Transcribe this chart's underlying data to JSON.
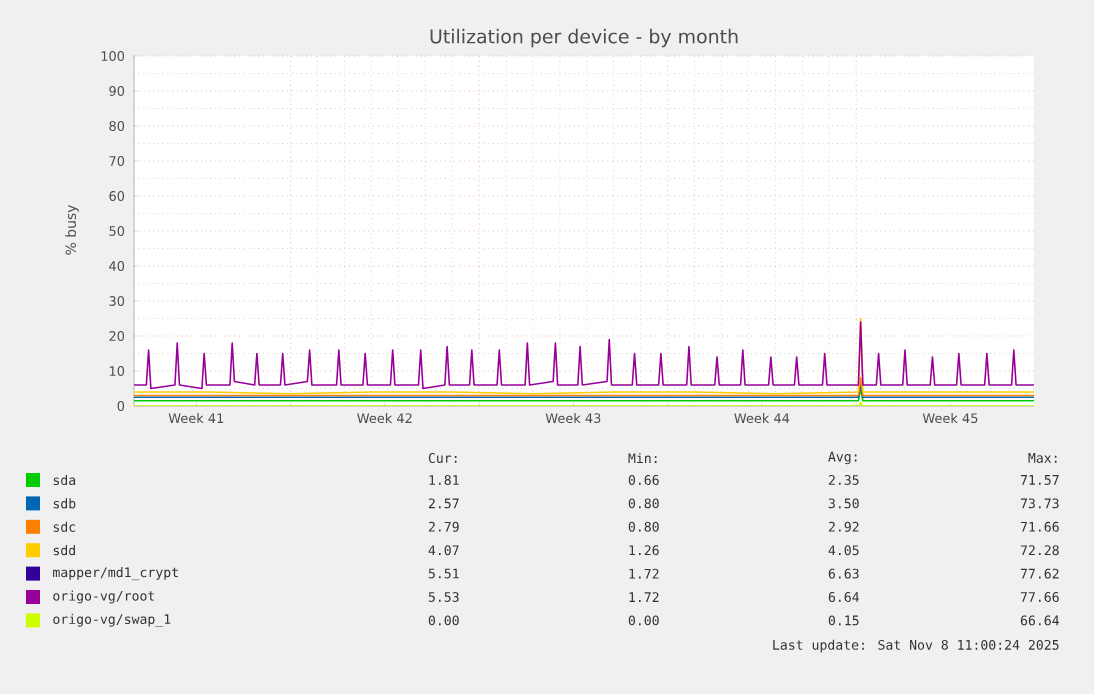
{
  "chart_data": {
    "type": "line",
    "title": "Utilization per device - by month",
    "ylabel": "% busy",
    "xlim": [
      "2025-10-07T04:30",
      "2025-11-09T14:30"
    ],
    "xticks": [
      {
        "value": "2025-10-09T12:00",
        "label": "Week 41"
      },
      {
        "value": "2025-10-13T00:00",
        "label": null
      },
      {
        "value": "2025-10-16T12:00",
        "label": "Week 42"
      },
      {
        "value": "2025-10-20T00:00",
        "label": null
      },
      {
        "value": "2025-10-23T12:00",
        "label": "Week 43"
      },
      {
        "value": "2025-10-27T00:00",
        "label": null
      },
      {
        "value": "2025-10-30T12:00",
        "label": "Week 44"
      },
      {
        "value": "2025-11-03T00:00",
        "label": null
      },
      {
        "value": "2025-11-06T12:00",
        "label": "Week 45"
      }
    ],
    "ylim": [
      0,
      100
    ],
    "yticks": [
      0,
      10,
      20,
      30,
      40,
      50,
      60,
      70,
      80,
      90,
      100
    ],
    "grid": true,
    "legend": "bottom",
    "marker": "none",
    "line_style": "solid",
    "x": [
      "2025-10-07T04:30",
      "2025-10-10T00:00",
      "2025-10-13T00:00",
      "2025-10-16T00:00",
      "2025-10-19T00:00",
      "2025-10-22T00:00",
      "2025-10-25T00:00",
      "2025-10-28T00:00",
      "2025-10-31T00:00",
      "2025-11-03T02:00",
      "2025-11-03T04:00",
      "2025-11-03T06:00",
      "2025-11-06T00:00",
      "2025-11-09T14:30"
    ],
    "series": [
      {
        "name": "sda",
        "color": "#00cc00",
        "values": [
          1.5,
          1.5,
          1.5,
          1.5,
          1.5,
          1.5,
          1.5,
          1.5,
          1.5,
          1.5,
          5,
          1.5,
          1.5,
          1.5
        ]
      },
      {
        "name": "sdb",
        "color": "#0066b3",
        "values": [
          2.5,
          2.5,
          2.5,
          2.5,
          2.5,
          2.5,
          2.5,
          2.5,
          2.5,
          2.5,
          6,
          2.5,
          2.5,
          2.5
        ]
      },
      {
        "name": "sdc",
        "color": "#ff8000",
        "values": [
          3,
          3,
          3,
          3,
          3,
          3,
          3,
          3,
          3,
          3,
          8,
          3,
          3,
          3
        ]
      },
      {
        "name": "sdd",
        "color": "#ffcc00",
        "values": [
          4,
          4,
          3.5,
          4,
          4,
          3.5,
          4,
          4,
          3.5,
          4,
          25,
          4,
          4,
          4
        ]
      },
      {
        "name": "mapper/md1_crypt",
        "color": "#330099",
        "values": [
          null,
          null,
          null,
          null,
          null,
          null,
          null,
          null,
          null,
          null,
          null,
          null,
          null,
          null
        ]
      },
      {
        "name": "origo-vg/root",
        "color": "#990099",
        "x": [
          "2025-10-07T04:30",
          "2025-10-07T15:30",
          "2025-10-07T17:30",
          "2025-10-07T19:30",
          "2025-10-08T17:00",
          "2025-10-08T19:00",
          "2025-10-08T21:00",
          "2025-10-09T17:00",
          "2025-10-09T19:00",
          "2025-10-09T21:00",
          "2025-10-10T18:00",
          "2025-10-10T20:00",
          "2025-10-10T22:00",
          "2025-10-11T16:00",
          "2025-10-11T18:00",
          "2025-10-11T20:00",
          "2025-10-12T15:00",
          "2025-10-12T17:00",
          "2025-10-12T19:00",
          "2025-10-13T15:00",
          "2025-10-13T17:00",
          "2025-10-13T19:00",
          "2025-10-14T17:00",
          "2025-10-14T19:00",
          "2025-10-14T21:00",
          "2025-10-15T16:30",
          "2025-10-15T18:30",
          "2025-10-15T20:30",
          "2025-10-16T17:00",
          "2025-10-16T19:00",
          "2025-10-16T21:00",
          "2025-10-17T18:00",
          "2025-10-17T20:00",
          "2025-10-17T22:00",
          "2025-10-18T17:30",
          "2025-10-18T19:30",
          "2025-10-18T21:30",
          "2025-10-19T15:30",
          "2025-10-19T17:30",
          "2025-10-19T19:30",
          "2025-10-20T16:00",
          "2025-10-20T18:00",
          "2025-10-20T20:00",
          "2025-10-21T17:00",
          "2025-10-21T19:00",
          "2025-10-21T21:00",
          "2025-10-22T18:00",
          "2025-10-22T20:00",
          "2025-10-22T22:00",
          "2025-10-23T16:00",
          "2025-10-23T18:00",
          "2025-10-23T20:00",
          "2025-10-24T18:00",
          "2025-10-24T20:00",
          "2025-10-24T22:00",
          "2025-10-25T16:30",
          "2025-10-25T18:30",
          "2025-10-25T20:30",
          "2025-10-26T16:00",
          "2025-10-26T18:00",
          "2025-10-26T20:00",
          "2025-10-27T17:00",
          "2025-10-27T19:00",
          "2025-10-27T21:00",
          "2025-10-28T18:00",
          "2025-10-28T20:00",
          "2025-10-28T22:00",
          "2025-10-29T17:00",
          "2025-10-29T19:00",
          "2025-10-29T21:00",
          "2025-10-30T18:00",
          "2025-10-30T20:00",
          "2025-10-30T22:00",
          "2025-10-31T17:00",
          "2025-10-31T19:00",
          "2025-10-31T21:00",
          "2025-11-01T18:00",
          "2025-11-01T20:00",
          "2025-11-01T22:00",
          "2025-11-03T02:00",
          "2025-11-03T04:00",
          "2025-11-03T06:00",
          "2025-11-03T18:00",
          "2025-11-03T20:00",
          "2025-11-03T22:00",
          "2025-11-04T17:30",
          "2025-11-04T19:30",
          "2025-11-04T21:30",
          "2025-11-05T18:00",
          "2025-11-05T20:00",
          "2025-11-05T22:00",
          "2025-11-06T17:30",
          "2025-11-06T19:30",
          "2025-11-06T21:30",
          "2025-11-07T18:30",
          "2025-11-07T20:30",
          "2025-11-07T22:30",
          "2025-11-08T18:30",
          "2025-11-08T20:30",
          "2025-11-08T22:30",
          "2025-11-09T14:30"
        ],
        "values": [
          6,
          6,
          16,
          5,
          6,
          18,
          6,
          5,
          15,
          6,
          6,
          18,
          7,
          6,
          15,
          6,
          6,
          15,
          6,
          7,
          16,
          6,
          6,
          16,
          6,
          6,
          15,
          6,
          6,
          16,
          6,
          6,
          16,
          5,
          6,
          17,
          6,
          6,
          16,
          6,
          6,
          16,
          6,
          6,
          18,
          6,
          7,
          18,
          6,
          6,
          17,
          6,
          7,
          19,
          6,
          6,
          15,
          6,
          6,
          15,
          6,
          6,
          17,
          6,
          6,
          14,
          6,
          6,
          16,
          6,
          6,
          14,
          6,
          6,
          14,
          6,
          6,
          15,
          6,
          6,
          24,
          6,
          6,
          15,
          6,
          6,
          16,
          6,
          6,
          14,
          6,
          6,
          15,
          6,
          6,
          15,
          6,
          6,
          16,
          6,
          6
        ]
      },
      {
        "name": "origo-vg/swap_1",
        "color": "#ccff00",
        "values": [
          0,
          0,
          0,
          0,
          0,
          0,
          0,
          0,
          0,
          0,
          1,
          0,
          0,
          0
        ]
      }
    ],
    "annotations": [
      "Cur:",
      "Min:",
      "Avg:",
      "Max:",
      "1.81",
      "0.66",
      "2.35",
      "71.57",
      "2.57",
      "0.80",
      "3.50",
      "73.73",
      "2.79",
      "0.80",
      "2.92",
      "71.66",
      "4.07",
      "1.26",
      "4.05",
      "72.28",
      "5.51",
      "1.72",
      "6.63",
      "77.62",
      "5.53",
      "1.72",
      "6.64",
      "77.66",
      "0.00",
      "0.00",
      "0.15",
      "66.64",
      "Last update: Sat Nov  8 11:00:24 2025"
    ]
  }
}
